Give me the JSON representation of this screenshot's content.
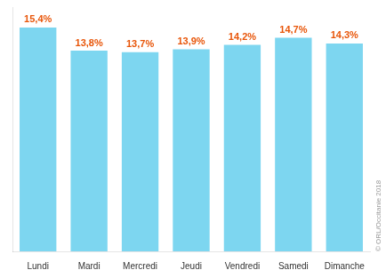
{
  "chart_data": {
    "type": "bar",
    "categories": [
      "Lundi",
      "Mardi",
      "Mercredi",
      "Jeudi",
      "Vendredi",
      "Samedi",
      "Dimanche"
    ],
    "values": [
      15.4,
      13.8,
      13.7,
      13.9,
      14.2,
      14.7,
      14.3
    ],
    "value_labels": [
      "15,4%",
      "13,8%",
      "13,7%",
      "13,9%",
      "14,2%",
      "14,7%",
      "14,3%"
    ],
    "data_labels": true,
    "color": "#7DD6F0",
    "ylim": [
      0,
      16.8
    ],
    "yticks": [],
    "tick_labels": "x",
    "grid": false,
    "annotations": [
      {
        "text": "© ORL/Occitanie 2018"
      }
    ]
  }
}
